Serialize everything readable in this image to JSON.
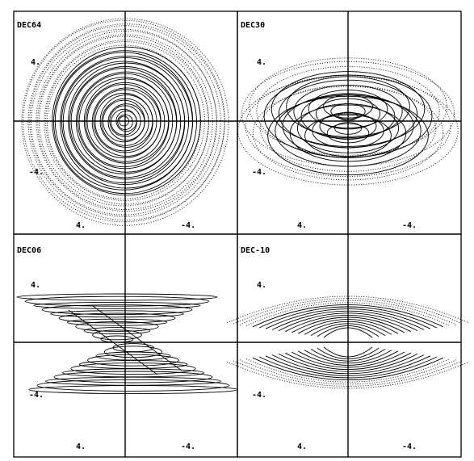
{
  "panels": [
    {
      "id": "p1",
      "title": "DEC64",
      "tick_x_left": "4.",
      "tick_x_right": "-4.",
      "tick_y_top": "4.",
      "tick_y_bottom": "-4.",
      "pattern": "circles"
    },
    {
      "id": "p2",
      "title": "DEC30",
      "tick_x_left": "4.",
      "tick_x_right": "-4.",
      "tick_y_top": "4.",
      "tick_y_bottom": "-4.",
      "pattern": "ellipses"
    },
    {
      "id": "p3",
      "title": "DEC06",
      "tick_x_left": "4.",
      "tick_x_right": "-4.",
      "tick_y_top": "4.",
      "tick_y_bottom": "-4.",
      "pattern": "flat"
    },
    {
      "id": "p4",
      "title": "DEC-10",
      "tick_x_left": "4.",
      "tick_x_right": "-4.",
      "tick_y_top": "4.",
      "tick_y_bottom": "-4.",
      "pattern": "arcs"
    }
  ]
}
